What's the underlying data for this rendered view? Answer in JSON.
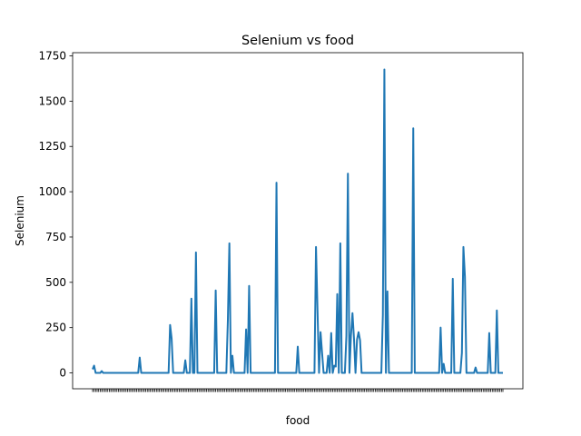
{
  "chart_data": {
    "type": "line",
    "title": "Selenium vs food",
    "xlabel": "food",
    "ylabel": "Selenium",
    "ylim": [
      -87.5,
      1767.5
    ],
    "yticks": [
      0,
      250,
      500,
      750,
      1000,
      1250,
      1500,
      1750
    ],
    "grid": false,
    "legend": "none",
    "line_color": "#1f77b4",
    "series": [
      {
        "points": [
          [
            0,
            20
          ],
          [
            1,
            40
          ],
          [
            2,
            0
          ],
          [
            5,
            0
          ],
          [
            6,
            10
          ],
          [
            7,
            0
          ],
          [
            30,
            0
          ],
          [
            31,
            85
          ],
          [
            32,
            0
          ],
          [
            50,
            0
          ],
          [
            51,
            265
          ],
          [
            52,
            190
          ],
          [
            53,
            0
          ],
          [
            60,
            0
          ],
          [
            61,
            70
          ],
          [
            62,
            0
          ],
          [
            64,
            0
          ],
          [
            65,
            410
          ],
          [
            66,
            0
          ],
          [
            67,
            0
          ],
          [
            68,
            665
          ],
          [
            69,
            0
          ],
          [
            80,
            0
          ],
          [
            81,
            455
          ],
          [
            82,
            0
          ],
          [
            88,
            0
          ],
          [
            89,
            290
          ],
          [
            90,
            715
          ],
          [
            91,
            0
          ],
          [
            92,
            95
          ],
          [
            93,
            0
          ],
          [
            100,
            0
          ],
          [
            101,
            240
          ],
          [
            102,
            0
          ],
          [
            103,
            480
          ],
          [
            104,
            0
          ],
          [
            120,
            0
          ],
          [
            121,
            1050
          ],
          [
            122,
            0
          ],
          [
            134,
            0
          ],
          [
            135,
            145
          ],
          [
            136,
            0
          ],
          [
            146,
            0
          ],
          [
            147,
            695
          ],
          [
            148,
            345
          ],
          [
            149,
            0
          ],
          [
            150,
            225
          ],
          [
            151,
            110
          ],
          [
            152,
            0
          ],
          [
            154,
            0
          ],
          [
            155,
            95
          ],
          [
            156,
            0
          ],
          [
            157,
            220
          ],
          [
            158,
            0
          ],
          [
            159,
            40
          ],
          [
            160,
            35
          ],
          [
            161,
            435
          ],
          [
            162,
            0
          ],
          [
            163,
            715
          ],
          [
            164,
            0
          ],
          [
            166,
            0
          ],
          [
            167,
            205
          ],
          [
            168,
            1100
          ],
          [
            169,
            0
          ],
          [
            170,
            205
          ],
          [
            171,
            330
          ],
          [
            172,
            190
          ],
          [
            173,
            0
          ],
          [
            174,
            185
          ],
          [
            175,
            225
          ],
          [
            176,
            180
          ],
          [
            177,
            0
          ],
          [
            190,
            0
          ],
          [
            191,
            320
          ],
          [
            192,
            1675
          ],
          [
            193,
            0
          ],
          [
            194,
            450
          ],
          [
            195,
            0
          ],
          [
            210,
            0
          ],
          [
            211,
            1350
          ],
          [
            212,
            0
          ],
          [
            228,
            0
          ],
          [
            229,
            250
          ],
          [
            230,
            0
          ],
          [
            231,
            50
          ],
          [
            232,
            0
          ],
          [
            236,
            0
          ],
          [
            237,
            520
          ],
          [
            238,
            0
          ],
          [
            242,
            0
          ],
          [
            243,
            110
          ],
          [
            244,
            695
          ],
          [
            245,
            530
          ],
          [
            246,
            0
          ],
          [
            251,
            0
          ],
          [
            252,
            30
          ],
          [
            253,
            0
          ],
          [
            260,
            0
          ],
          [
            261,
            220
          ],
          [
            262,
            0
          ],
          [
            265,
            0
          ],
          [
            266,
            345
          ],
          [
            267,
            0
          ],
          [
            270,
            0
          ]
        ]
      }
    ],
    "xlim": [
      0,
      270
    ],
    "x_tick_count": 271
  }
}
